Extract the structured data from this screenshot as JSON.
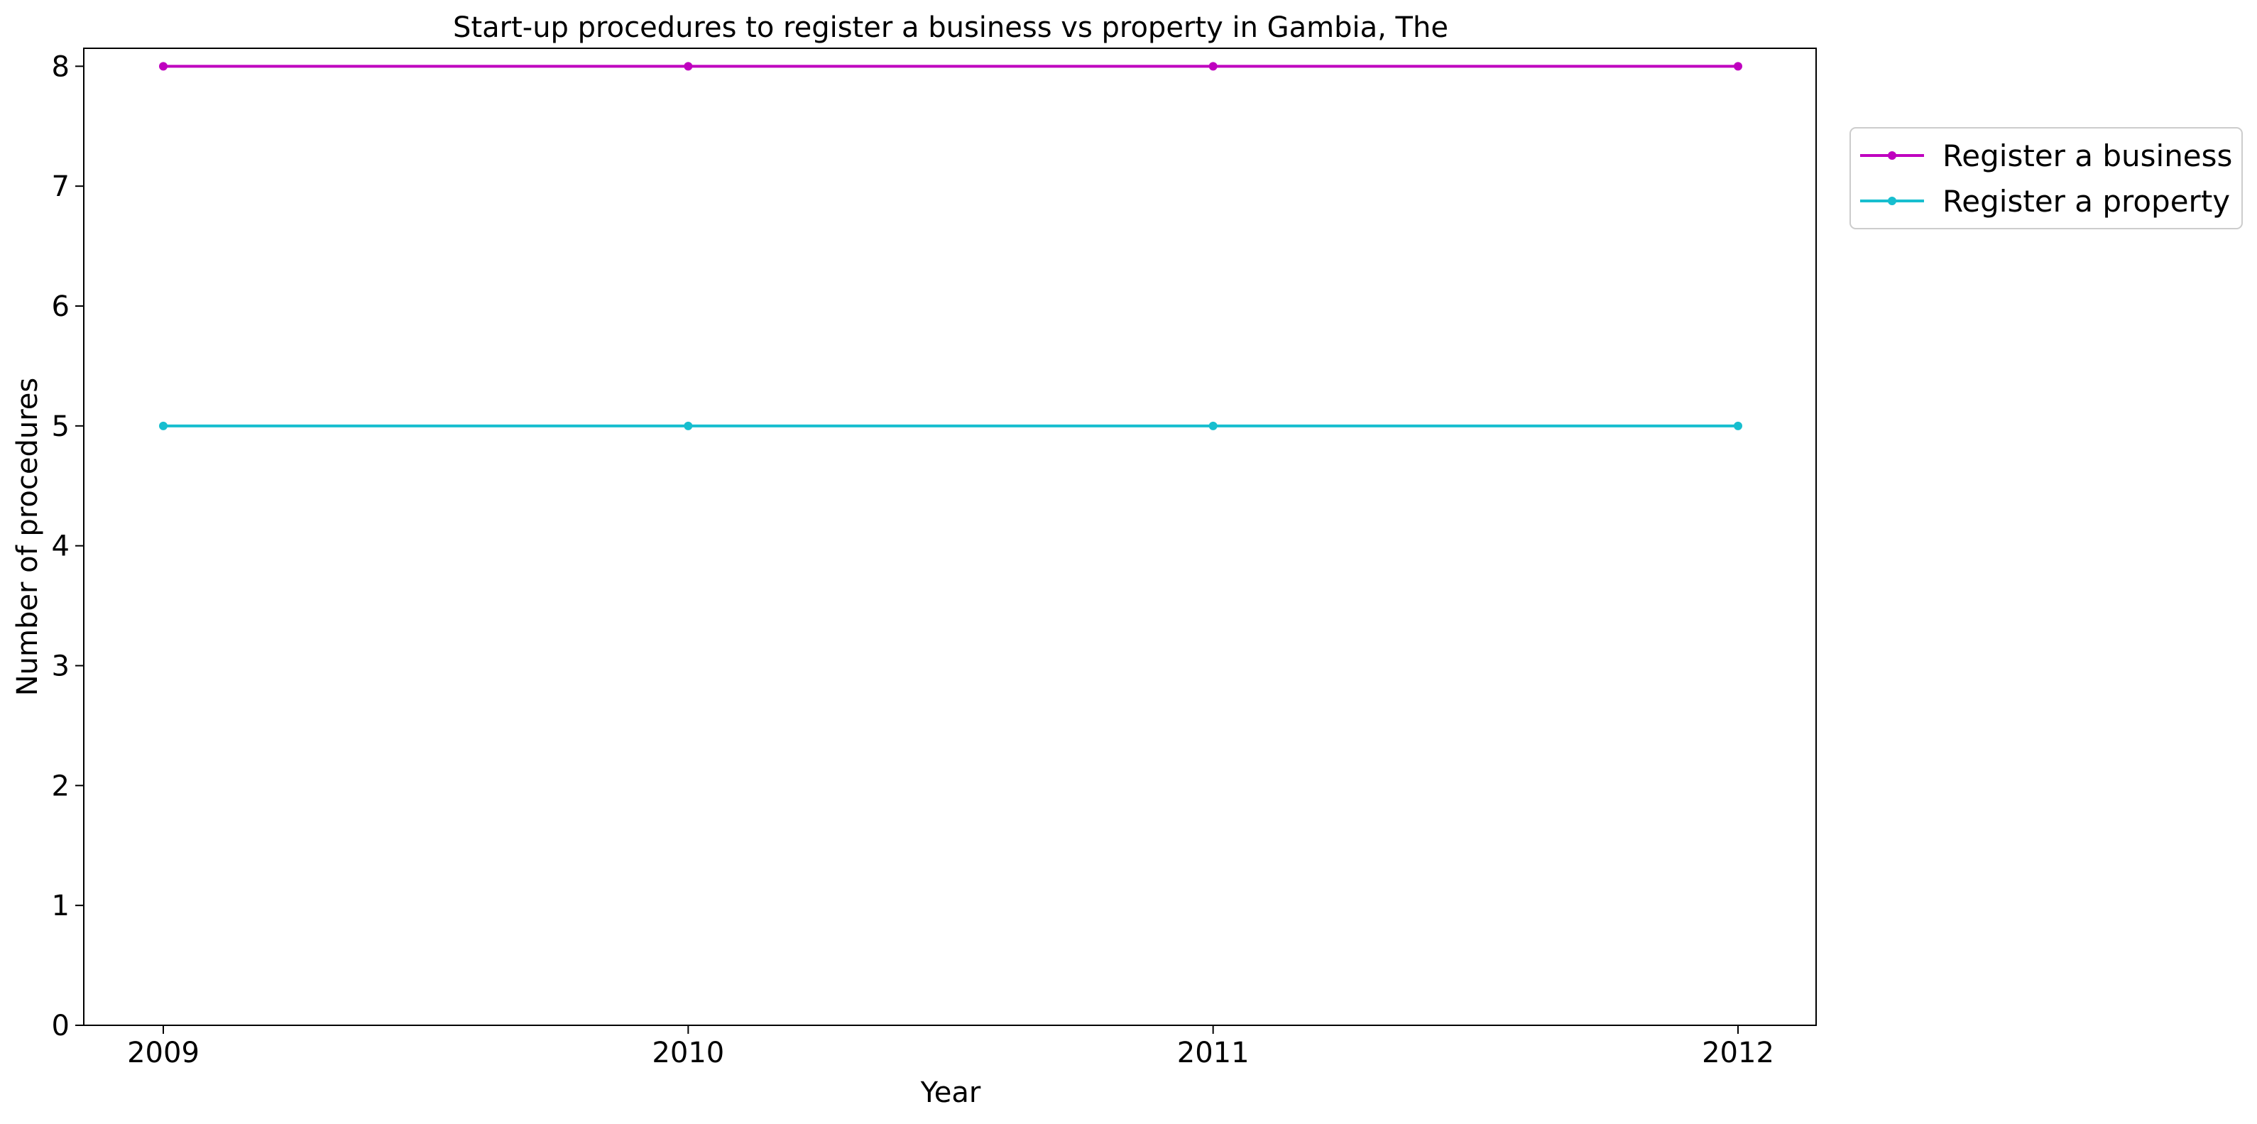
{
  "chart_data": {
    "type": "line",
    "title": "Start-up procedures to register a business vs property in Gambia, The",
    "xlabel": "Year",
    "ylabel": "Number of procedures",
    "x": [
      "2009",
      "2010",
      "2011",
      "2012"
    ],
    "ylim": [
      0,
      8.15
    ],
    "yticks": [
      0,
      1,
      2,
      3,
      4,
      5,
      6,
      7,
      8
    ],
    "grid": false,
    "legend_position": "outside-top-right",
    "series": [
      {
        "name": "Register a business",
        "values": [
          8,
          8,
          8,
          8
        ],
        "color": "#bf00bf"
      },
      {
        "name": "Register a property",
        "values": [
          5,
          5,
          5,
          5
        ],
        "color": "#17becf"
      }
    ]
  }
}
